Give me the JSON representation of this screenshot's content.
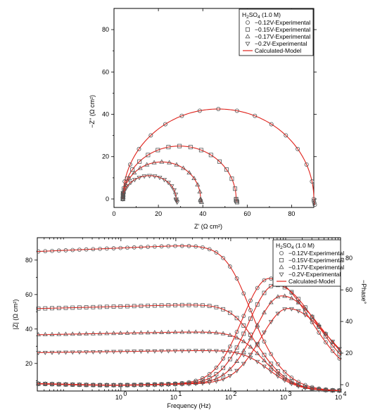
{
  "chart_data": [
    {
      "type": "scatter",
      "xlabel": "Z' (Ω cm²)",
      "ylabel": "−Z'' (Ω cm²)",
      "xlim": [
        0,
        90
      ],
      "ylim": [
        -4,
        90
      ],
      "xticks": [
        0,
        20,
        40,
        60,
        80
      ],
      "yticks": [
        0,
        20,
        40,
        60,
        80
      ],
      "legend": {
        "placement": "top-right",
        "title_main": "H",
        "title_sub": "2",
        "title_main2": "SO",
        "title_sub2": "4",
        "title_rest": " (1.0 M)"
      },
      "series": [
        {
          "name": "−0.12V-Experimental",
          "marker": "circle",
          "Rs": 4,
          "Rct": 86,
          "peak": 42.5
        },
        {
          "name": "−0.15V-Experimental",
          "marker": "square",
          "Rs": 4,
          "Rct": 51,
          "peak": 25
        },
        {
          "name": "−0.17V-Experimental",
          "marker": "triangle-up",
          "Rs": 4,
          "Rct": 35,
          "peak": 17.5
        },
        {
          "name": "−0.2V-Experimental",
          "marker": "triangle-down",
          "Rs": 4,
          "Rct": 24,
          "peak": 11
        }
      ],
      "model_name": "Calculated-Model",
      "model_color": "#e0231c"
    },
    {
      "type": "line",
      "xlabel": "Frequency (Hz)",
      "ylabel": "|Z| (Ω cm²)",
      "y2label": "−Phase°",
      "xscale": "log",
      "xlim": [
        0.03,
        10000
      ],
      "ylim": [
        4,
        93
      ],
      "y2lim": [
        -4,
        93
      ],
      "xticks": [
        1,
        10,
        100,
        1000,
        10000
      ],
      "xticklabels": [
        "10",
        "10",
        "10",
        "10",
        "10"
      ],
      "xtickexp": [
        "0",
        "1",
        "2",
        "3",
        "4"
      ],
      "yticks": [
        20,
        40,
        60,
        80
      ],
      "y2ticks": [
        0,
        20,
        40,
        60,
        80
      ],
      "legend": {
        "placement": "top-right",
        "title_main": "H",
        "title_sub": "2",
        "title_main2": "SO",
        "title_sub2": "4",
        "title_rest": " (1.0 M)"
      },
      "series": [
        {
          "name": "−0.12V-Experimental",
          "marker": "circle",
          "Rs": 4,
          "Rct": 86,
          "phase_peak": 66,
          "phase_fpeak": 500
        },
        {
          "name": "−0.15V-Experimental",
          "marker": "square",
          "Rs": 4,
          "Rct": 51,
          "phase_peak": 62,
          "phase_fpeak": 650
        },
        {
          "name": "−0.17V-Experimental",
          "marker": "triangle-up",
          "Rs": 4,
          "Rct": 35,
          "phase_peak": 55,
          "phase_fpeak": 850
        },
        {
          "name": "−0.2V-Experimental",
          "marker": "triangle-down",
          "Rs": 4,
          "Rct": 24,
          "phase_peak": 47,
          "phase_fpeak": 1100
        }
      ],
      "model_name": "Calculated-Model",
      "model_color": "#e0231c"
    }
  ]
}
